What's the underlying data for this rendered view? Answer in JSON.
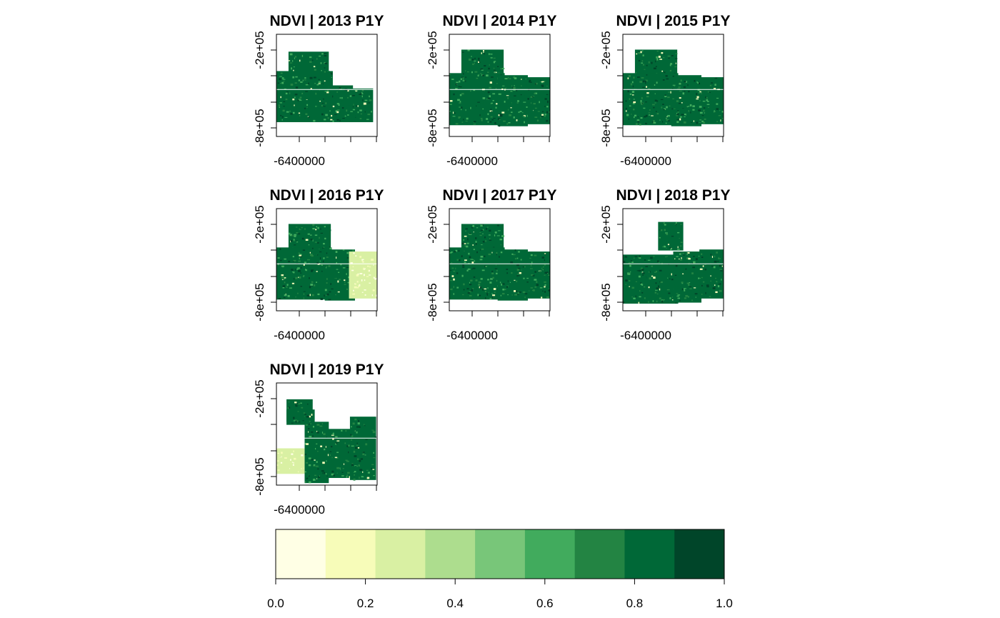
{
  "figure": {
    "panels": [
      {
        "title": "NDVI | 2013 P1Y",
        "tiles": "a"
      },
      {
        "title": "NDVI | 2014 P1Y",
        "tiles": "b"
      },
      {
        "title": "NDVI | 2015 P1Y",
        "tiles": "b"
      },
      {
        "title": "NDVI | 2016 P1Y",
        "tiles": "b",
        "pale_patch": true
      },
      {
        "title": "NDVI | 2017 P1Y",
        "tiles": "b"
      },
      {
        "title": "NDVI | 2018 P1Y",
        "tiles": "c"
      },
      {
        "title": "NDVI | 2019 P1Y",
        "tiles": "d",
        "pale_patch": true
      }
    ],
    "y_tick_labels": [
      "-2e+05",
      "-8e+05"
    ],
    "x_tick_label": "-6400000",
    "legend": {
      "colors": [
        "#ffffe5",
        "#f7fcb9",
        "#d9f0a3",
        "#addd8e",
        "#78c679",
        "#41ab5d",
        "#238443",
        "#006837",
        "#004529"
      ],
      "tick_labels": [
        "0.0",
        "0.2",
        "0.4",
        "0.6",
        "0.8",
        "1.0"
      ]
    }
  }
}
